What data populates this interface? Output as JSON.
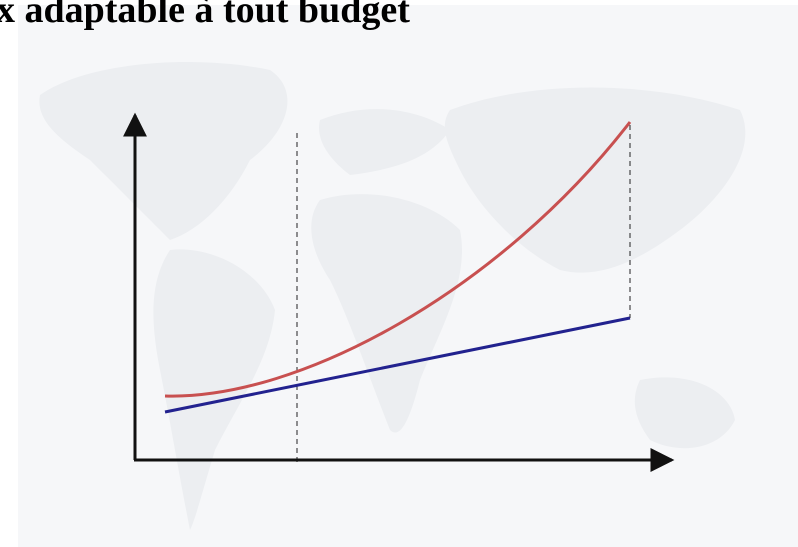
{
  "header": {
    "title": "x adaptable à tout budget"
  }
}
